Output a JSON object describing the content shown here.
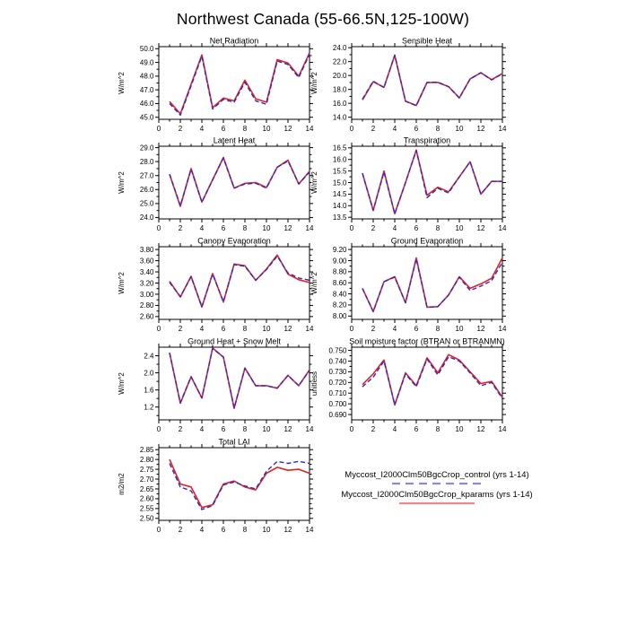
{
  "title": "Northwest Canada (55-66.5N,125-100W)",
  "series_colors": {
    "control": "#2a2ac8",
    "kparams": "#e62020"
  },
  "legend": {
    "entries": [
      {
        "label": "Myccost_I2000Clm50BgcCrop_control (yrs 1-14)",
        "color": "#8a8ad8",
        "style": "dashed"
      },
      {
        "label": "Myccost_I2000Clm50BgcCrop_kparams (yrs 1-14)",
        "color": "#f08a8a",
        "style": "solid"
      }
    ]
  },
  "chart_data": [
    {
      "type": "line",
      "title": "Net Radiation",
      "ylabel": "W/m^2",
      "x": [
        1,
        2,
        3,
        4,
        5,
        6,
        7,
        8,
        9,
        10,
        11,
        12,
        13,
        14
      ],
      "xlim": [
        0,
        14
      ],
      "xticks": [
        0,
        2,
        4,
        6,
        8,
        10,
        12,
        14
      ],
      "ylim": [
        44.85,
        50.15
      ],
      "yticks": [
        45.0,
        46.0,
        47.0,
        48.0,
        49.0,
        50.0
      ],
      "ydecimals": 1,
      "series": [
        {
          "name": "control",
          "dash": true,
          "values": [
            46.0,
            45.15,
            47.3,
            49.45,
            45.6,
            46.3,
            46.1,
            47.55,
            46.2,
            45.95,
            49.1,
            48.85,
            47.9,
            49.6
          ]
        },
        {
          "name": "kparams",
          "dash": false,
          "values": [
            46.15,
            45.25,
            47.4,
            49.55,
            45.7,
            46.4,
            46.2,
            47.7,
            46.35,
            46.1,
            49.2,
            48.95,
            48.0,
            49.7
          ]
        }
      ]
    },
    {
      "type": "line",
      "title": "Sensible Heat",
      "ylabel": "W/m^2",
      "x": [
        1,
        2,
        3,
        4,
        5,
        6,
        7,
        8,
        9,
        10,
        11,
        12,
        13,
        14
      ],
      "xlim": [
        0,
        14
      ],
      "xticks": [
        0,
        2,
        4,
        6,
        8,
        10,
        12,
        14
      ],
      "ylim": [
        13.7,
        24.15
      ],
      "yticks": [
        14.0,
        16.0,
        18.0,
        20.0,
        22.0,
        24.0
      ],
      "ydecimals": 1,
      "series": [
        {
          "name": "control",
          "dash": true,
          "values": [
            16.6,
            19.2,
            18.25,
            22.95,
            16.3,
            15.65,
            19.0,
            19.05,
            18.4,
            16.75,
            19.5,
            20.4,
            19.35,
            20.25
          ]
        },
        {
          "name": "kparams",
          "dash": false,
          "values": [
            16.5,
            19.1,
            18.3,
            22.9,
            16.3,
            15.7,
            19.0,
            19.0,
            18.4,
            16.8,
            19.5,
            20.4,
            19.4,
            20.3
          ]
        }
      ]
    },
    {
      "type": "line",
      "title": "Latent Heat",
      "ylabel": "W/m^2",
      "x": [
        1,
        2,
        3,
        4,
        5,
        6,
        7,
        8,
        9,
        10,
        11,
        12,
        13,
        14
      ],
      "xlim": [
        0,
        14
      ],
      "xticks": [
        0,
        2,
        4,
        6,
        8,
        10,
        12,
        14
      ],
      "ylim": [
        23.9,
        29.1
      ],
      "yticks": [
        24.0,
        25.0,
        26.0,
        27.0,
        28.0,
        29.0
      ],
      "ydecimals": 1,
      "series": [
        {
          "name": "control",
          "dash": true,
          "values": [
            27.1,
            24.85,
            27.45,
            25.1,
            26.7,
            28.25,
            26.1,
            26.4,
            26.45,
            26.1,
            27.6,
            28.05,
            26.4,
            27.25
          ]
        },
        {
          "name": "kparams",
          "dash": false,
          "values": [
            27.1,
            24.8,
            27.5,
            25.1,
            26.7,
            28.3,
            26.1,
            26.45,
            26.5,
            26.15,
            27.6,
            28.1,
            26.4,
            27.3
          ]
        }
      ]
    },
    {
      "type": "line",
      "title": "Transpiration",
      "ylabel": "W/m^2",
      "x": [
        1,
        2,
        3,
        4,
        5,
        6,
        7,
        8,
        9,
        10,
        11,
        12,
        13,
        14
      ],
      "xlim": [
        0,
        14
      ],
      "xticks": [
        0,
        2,
        4,
        6,
        8,
        10,
        12,
        14
      ],
      "ylim": [
        13.43,
        16.57
      ],
      "yticks": [
        13.5,
        14.0,
        14.5,
        15.0,
        15.5,
        16.0,
        16.5
      ],
      "ydecimals": 1,
      "series": [
        {
          "name": "control",
          "dash": true,
          "values": [
            15.4,
            13.8,
            15.45,
            13.65,
            15.0,
            16.4,
            14.35,
            14.75,
            14.55,
            15.25,
            15.9,
            14.5,
            15.05,
            15.05
          ]
        },
        {
          "name": "kparams",
          "dash": false,
          "values": [
            15.4,
            13.8,
            15.5,
            13.65,
            15.0,
            16.4,
            14.45,
            14.8,
            14.6,
            15.25,
            15.9,
            14.5,
            15.05,
            15.05
          ]
        }
      ]
    },
    {
      "type": "line",
      "title": "Canopy Evaporation",
      "ylabel": "W/m^2",
      "x": [
        1,
        2,
        3,
        4,
        5,
        6,
        7,
        8,
        9,
        10,
        11,
        12,
        13,
        14
      ],
      "xlim": [
        0,
        14
      ],
      "xticks": [
        0,
        2,
        4,
        6,
        8,
        10,
        12,
        14
      ],
      "ylim": [
        2.55,
        3.85
      ],
      "yticks": [
        2.6,
        2.8,
        3.0,
        3.2,
        3.4,
        3.6,
        3.8
      ],
      "ydecimals": 2,
      "series": [
        {
          "name": "control",
          "dash": true,
          "values": [
            3.21,
            2.96,
            3.31,
            2.78,
            3.36,
            2.87,
            3.53,
            3.5,
            3.25,
            3.44,
            3.68,
            3.38,
            3.29,
            3.25
          ]
        },
        {
          "name": "kparams",
          "dash": false,
          "values": [
            3.23,
            2.95,
            3.32,
            2.77,
            3.37,
            2.86,
            3.54,
            3.51,
            3.25,
            3.45,
            3.7,
            3.36,
            3.26,
            3.21
          ]
        }
      ]
    },
    {
      "type": "line",
      "title": "Ground Evaporation",
      "ylabel": "W/m^2",
      "x": [
        1,
        2,
        3,
        4,
        5,
        6,
        7,
        8,
        9,
        10,
        11,
        12,
        13,
        14
      ],
      "xlim": [
        0,
        14
      ],
      "xticks": [
        0,
        2,
        4,
        6,
        8,
        10,
        12,
        14
      ],
      "ylim": [
        7.94,
        9.25
      ],
      "yticks": [
        8.0,
        8.2,
        8.4,
        8.6,
        8.8,
        9.0,
        9.2
      ],
      "ydecimals": 2,
      "series": [
        {
          "name": "control",
          "dash": true,
          "values": [
            8.5,
            8.08,
            8.62,
            8.7,
            8.24,
            9.03,
            8.16,
            8.17,
            8.38,
            8.7,
            8.46,
            8.54,
            8.64,
            8.97
          ]
        },
        {
          "name": "kparams",
          "dash": false,
          "values": [
            8.5,
            8.08,
            8.62,
            8.71,
            8.24,
            9.05,
            8.16,
            8.17,
            8.38,
            8.71,
            8.5,
            8.58,
            8.68,
            9.05
          ]
        }
      ]
    },
    {
      "type": "line",
      "title": "Ground Heat + Snow Melt",
      "ylabel": "W/m^2",
      "x": [
        1,
        2,
        3,
        4,
        5,
        6,
        7,
        8,
        9,
        10,
        11,
        12,
        13,
        14
      ],
      "xlim": [
        0,
        14
      ],
      "xticks": [
        0,
        2,
        4,
        6,
        8,
        10,
        12,
        14
      ],
      "ylim": [
        0.9,
        2.6
      ],
      "yticks": [
        1.2,
        1.6,
        2.0,
        2.4
      ],
      "ydecimals": 1,
      "series": [
        {
          "name": "control",
          "dash": true,
          "values": [
            2.47,
            1.3,
            1.91,
            1.41,
            2.57,
            2.37,
            1.18,
            2.11,
            1.7,
            1.7,
            1.64,
            1.94,
            1.7,
            2.06
          ]
        },
        {
          "name": "kparams",
          "dash": false,
          "values": [
            2.47,
            1.29,
            1.91,
            1.41,
            2.58,
            2.37,
            1.17,
            2.11,
            1.7,
            1.7,
            1.64,
            1.94,
            1.7,
            2.07
          ]
        }
      ]
    },
    {
      "type": "line",
      "title": "Soil moisture factor (BTRAN or BTRANMN)",
      "ylabel": "unitless",
      "x": [
        1,
        2,
        3,
        4,
        5,
        6,
        7,
        8,
        9,
        10,
        11,
        12,
        13,
        14
      ],
      "xlim": [
        0,
        14
      ],
      "xticks": [
        0,
        2,
        4,
        6,
        8,
        10,
        12,
        14
      ],
      "ylim": [
        0.685,
        0.753
      ],
      "yticks": [
        0.69,
        0.7,
        0.71,
        0.72,
        0.73,
        0.74,
        0.75
      ],
      "ydecimals": 3,
      "series": [
        {
          "name": "control",
          "dash": true,
          "values": [
            0.716,
            0.725,
            0.74,
            0.699,
            0.728,
            0.716,
            0.742,
            0.727,
            0.744,
            0.74,
            0.729,
            0.717,
            0.72,
            0.705
          ]
        },
        {
          "name": "kparams",
          "dash": false,
          "values": [
            0.718,
            0.728,
            0.741,
            0.699,
            0.729,
            0.717,
            0.743,
            0.729,
            0.746,
            0.741,
            0.73,
            0.719,
            0.721,
            0.706
          ]
        }
      ]
    },
    {
      "type": "line",
      "title": "Total LAI",
      "ylabel": "m2/m2",
      "x": [
        1,
        2,
        3,
        4,
        5,
        6,
        7,
        8,
        9,
        10,
        11,
        12,
        13,
        14
      ],
      "xlim": [
        0,
        14
      ],
      "xticks": [
        0,
        2,
        4,
        6,
        8,
        10,
        12,
        14
      ],
      "ylim": [
        2.49,
        2.86
      ],
      "yticks": [
        2.5,
        2.55,
        2.6,
        2.65,
        2.7,
        2.75,
        2.8,
        2.85
      ],
      "ydecimals": 2,
      "series": [
        {
          "name": "control",
          "dash": true,
          "values": [
            2.78,
            2.66,
            2.64,
            2.545,
            2.565,
            2.67,
            2.685,
            2.665,
            2.65,
            2.74,
            2.79,
            2.78,
            2.79,
            2.78
          ]
        },
        {
          "name": "kparams",
          "dash": false,
          "values": [
            2.8,
            2.675,
            2.66,
            2.555,
            2.57,
            2.675,
            2.69,
            2.66,
            2.645,
            2.73,
            2.76,
            2.745,
            2.75,
            2.73
          ]
        }
      ]
    }
  ]
}
